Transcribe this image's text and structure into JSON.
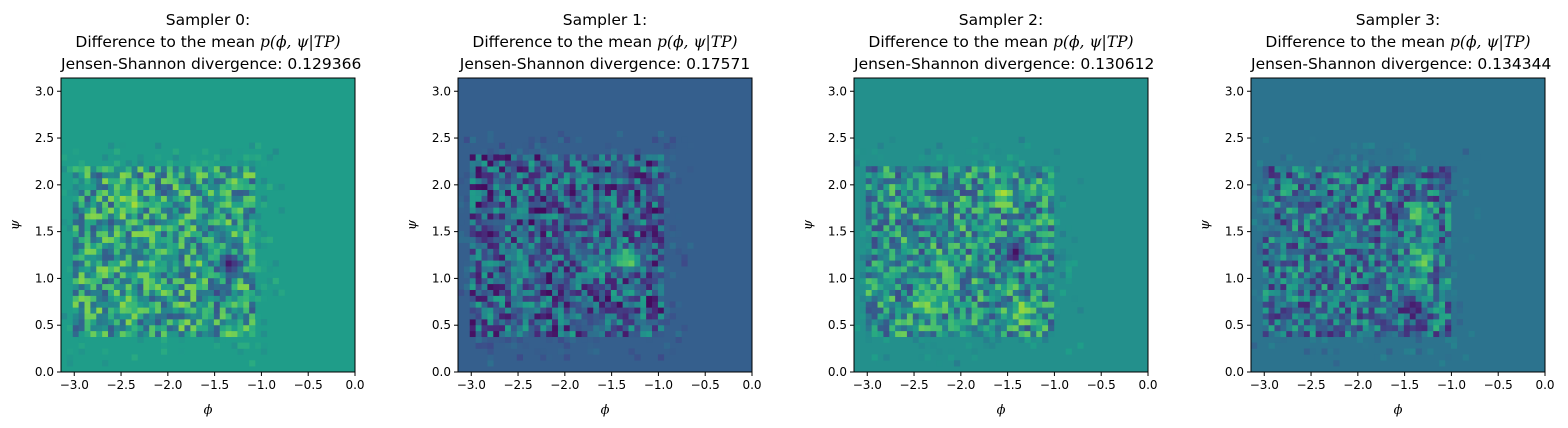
{
  "chart_data": [
    {
      "type": "heatmap",
      "title": {
        "line1": "Sampler 0:",
        "line2_prefix": "Difference to the mean ",
        "line2_math": "p(ϕ, ψ|TP)",
        "line3": "Jensen-Shannon divergence: 0.129366"
      },
      "xlabel": "ϕ",
      "ylabel": "ψ",
      "xlim": [
        -3.14159,
        0
      ],
      "ylim": [
        0,
        3.14159
      ],
      "xticks": [
        "−3.0",
        "−2.5",
        "−2.0",
        "−1.5",
        "−1.0",
        "−0.5",
        "0.0"
      ],
      "yticks": [
        "0.0",
        "0.5",
        "1.0",
        "1.5",
        "2.0",
        "2.5",
        "3.0"
      ],
      "bins": 50,
      "support": {
        "phi": [
          -3.0,
          -1.05
        ],
        "psi": [
          0.4,
          2.2
        ]
      },
      "background": 0.55,
      "colormap": "viridis",
      "hotspots": [
        {
          "phi": -2.4,
          "psi": 1.8,
          "value": 0.95
        },
        {
          "phi": -2.4,
          "psi": 0.7,
          "value": 0.85
        },
        {
          "phi": -2.2,
          "psi": 1.1,
          "value": 0.8
        },
        {
          "phi": -1.35,
          "psi": 1.15,
          "value": 0.0
        },
        {
          "phi": -1.45,
          "psi": 0.85,
          "value": 0.1
        }
      ]
    },
    {
      "type": "heatmap",
      "title": {
        "line1": "Sampler 1:",
        "line2_prefix": "Difference to the mean ",
        "line2_math": "p(ϕ, ψ|TP)",
        "line3": "Jensen-Shannon divergence: 0.17571"
      },
      "xlabel": "ϕ",
      "ylabel": "ψ",
      "xlim": [
        -3.14159,
        0
      ],
      "ylim": [
        0,
        3.14159
      ],
      "xticks": [
        "−3.0",
        "−2.5",
        "−2.0",
        "−1.5",
        "−1.0",
        "−0.5",
        "0.0"
      ],
      "yticks": [
        "0.0",
        "0.5",
        "1.0",
        "1.5",
        "2.0",
        "2.5",
        "3.0"
      ],
      "bins": 50,
      "support": {
        "phi": [
          -3.0,
          -0.95
        ],
        "psi": [
          0.4,
          2.3
        ]
      },
      "background": 0.3,
      "colormap": "viridis",
      "hotspots": [
        {
          "phi": -1.3,
          "psi": 1.2,
          "value": 1.0
        },
        {
          "phi": -1.6,
          "psi": 1.15,
          "value": 0.65
        },
        {
          "phi": -2.5,
          "psi": 1.1,
          "value": 0.6
        }
      ]
    },
    {
      "type": "heatmap",
      "title": {
        "line1": "Sampler 2:",
        "line2_prefix": "Difference to the mean ",
        "line2_math": "p(ϕ, ψ|TP)",
        "line3": "Jensen-Shannon divergence: 0.130612"
      },
      "xlabel": "ϕ",
      "ylabel": "ψ",
      "xlim": [
        -3.14159,
        0
      ],
      "ylim": [
        0,
        3.14159
      ],
      "xticks": [
        "−3.0",
        "−2.5",
        "−2.0",
        "−1.5",
        "−1.0",
        "−0.5",
        "0.0"
      ],
      "yticks": [
        "0.0",
        "0.5",
        "1.0",
        "1.5",
        "2.0",
        "2.5",
        "3.0"
      ],
      "bins": 50,
      "support": {
        "phi": [
          -3.0,
          -1.0
        ],
        "psi": [
          0.4,
          2.2
        ]
      },
      "background": 0.5,
      "colormap": "viridis",
      "hotspots": [
        {
          "phi": -1.55,
          "psi": 1.9,
          "value": 0.95
        },
        {
          "phi": -2.4,
          "psi": 0.75,
          "value": 0.9
        },
        {
          "phi": -1.4,
          "psi": 1.3,
          "value": 0.0
        },
        {
          "phi": -1.35,
          "psi": 0.65,
          "value": 0.9
        }
      ]
    },
    {
      "type": "heatmap",
      "title": {
        "line1": "Sampler 3:",
        "line2_prefix": "Difference to the mean ",
        "line2_math": "p(ϕ, ψ|TP)",
        "line3": "Jensen-Shannon divergence: 0.134344"
      },
      "xlabel": "ϕ",
      "ylabel": "ψ",
      "xlim": [
        -3.14159,
        0
      ],
      "ylim": [
        0,
        3.14159
      ],
      "xticks": [
        "−3.0",
        "−2.5",
        "−2.0",
        "−1.5",
        "−1.0",
        "−0.5",
        "0.0"
      ],
      "yticks": [
        "0.0",
        "0.5",
        "1.0",
        "1.5",
        "2.0",
        "2.5",
        "3.0"
      ],
      "bins": 50,
      "support": {
        "phi": [
          -3.0,
          -1.0
        ],
        "psi": [
          0.4,
          2.2
        ]
      },
      "background": 0.38,
      "colormap": "viridis",
      "hotspots": [
        {
          "phi": -1.35,
          "psi": 1.7,
          "value": 0.9
        },
        {
          "phi": -1.3,
          "psi": 1.2,
          "value": 0.95
        },
        {
          "phi": -1.4,
          "psi": 0.95,
          "value": 0.85
        },
        {
          "phi": -1.45,
          "psi": 0.7,
          "value": 0.0
        }
      ]
    }
  ]
}
